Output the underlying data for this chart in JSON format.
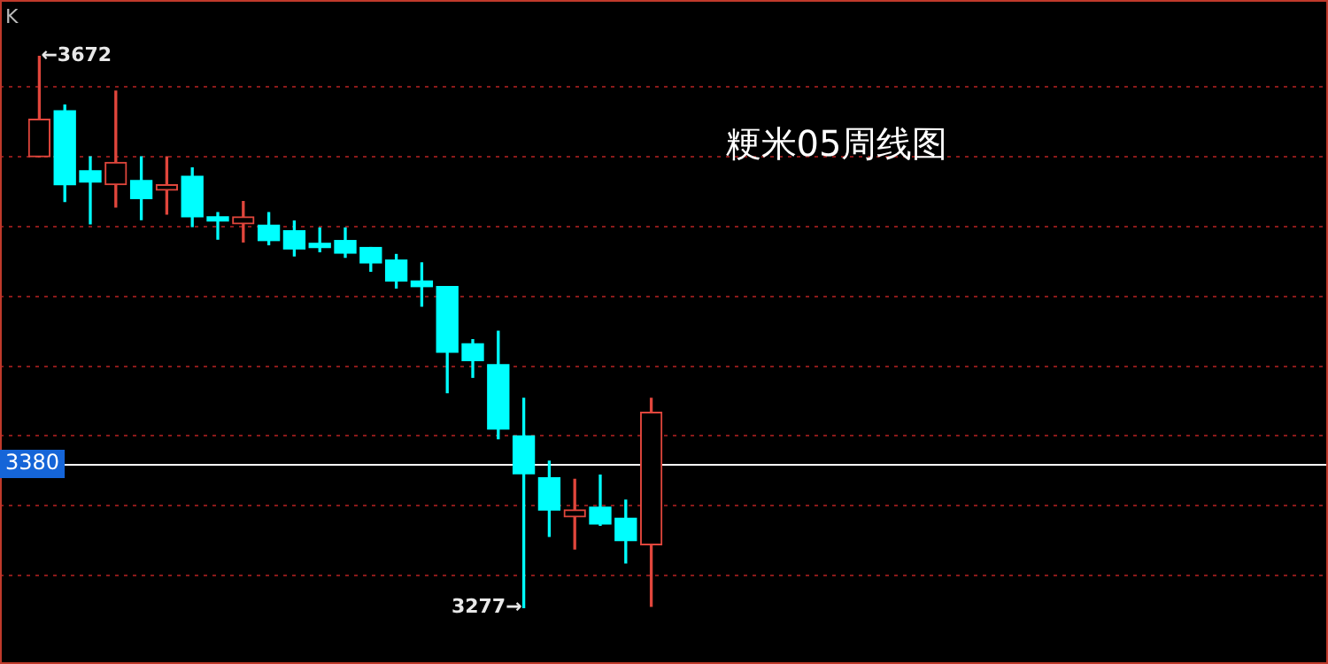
{
  "chart_data": {
    "type": "candlestick",
    "title": "粳米05周线图",
    "categories": [
      null,
      null,
      null,
      null,
      null,
      null,
      null,
      null,
      null,
      null,
      null,
      null,
      null,
      null,
      null,
      null,
      null,
      null,
      null,
      null,
      null,
      null,
      null,
      null,
      null
    ],
    "ohlc": [
      [
        3600,
        3672,
        3600,
        3627
      ],
      [
        3633,
        3637,
        3568,
        3580
      ],
      [
        3590,
        3600,
        3552,
        3582
      ],
      [
        3580,
        3647,
        3564,
        3596
      ],
      [
        3583,
        3600,
        3555,
        3570
      ],
      [
        3576,
        3600,
        3559,
        3580
      ],
      [
        3586,
        3592,
        3550,
        3557
      ],
      [
        3557,
        3560,
        3541,
        3554
      ],
      [
        3552,
        3568,
        3539,
        3557
      ],
      [
        3551,
        3560,
        3537,
        3540
      ],
      [
        3547,
        3554,
        3529,
        3534
      ],
      [
        3538,
        3549,
        3532,
        3535
      ],
      [
        3540,
        3549,
        3528,
        3531
      ],
      [
        3535,
        3535,
        3518,
        3524
      ],
      [
        3526,
        3530,
        3506,
        3511
      ],
      [
        3511,
        3524,
        3493,
        3507
      ],
      [
        3507,
        3507,
        3431,
        3460
      ],
      [
        3466,
        3469,
        3442,
        3454
      ],
      [
        3451,
        3475,
        3398,
        3405
      ],
      [
        3400,
        3427,
        3277,
        3373
      ],
      [
        3370,
        3382,
        3328,
        3347
      ],
      [
        3342,
        3369,
        3319,
        3347
      ],
      [
        3349,
        3372,
        3336,
        3337
      ],
      [
        3341,
        3354,
        3309,
        3325
      ],
      [
        3322,
        3427,
        3278,
        3417
      ]
    ],
    "colors": [
      "#e0463c",
      "#00ffff",
      "#00ffff",
      "#e0463c",
      "#00ffff",
      "#e0463c",
      "#00ffff",
      "#00ffff",
      "#e0463c",
      "#00ffff",
      "#00ffff",
      "#00ffff",
      "#00ffff",
      "#00ffff",
      "#00ffff",
      "#00ffff",
      "#00ffff",
      "#00ffff",
      "#00ffff",
      "#00ffff",
      "#00ffff",
      "#e0463c",
      "#00ffff",
      "#00ffff",
      "#e0463c"
    ],
    "yticks": [
      {
        "value": 3650,
        "label": null
      },
      {
        "value": 3600,
        "label": null
      },
      {
        "value": 3550,
        "label": null
      },
      {
        "value": 3500,
        "label": null
      },
      {
        "value": 3450,
        "label": null
      },
      {
        "value": 3400,
        "label": null
      },
      {
        "value": 3350,
        "label": null
      },
      {
        "value": 3300,
        "label": null
      }
    ],
    "grid": "y",
    "legend": false,
    "ref_lines": [
      {
        "axis": "y",
        "value": 3380,
        "label": "3380",
        "color": "#ffffff"
      }
    ],
    "annotations": [
      "K",
      "←3672",
      "3277→"
    ]
  }
}
